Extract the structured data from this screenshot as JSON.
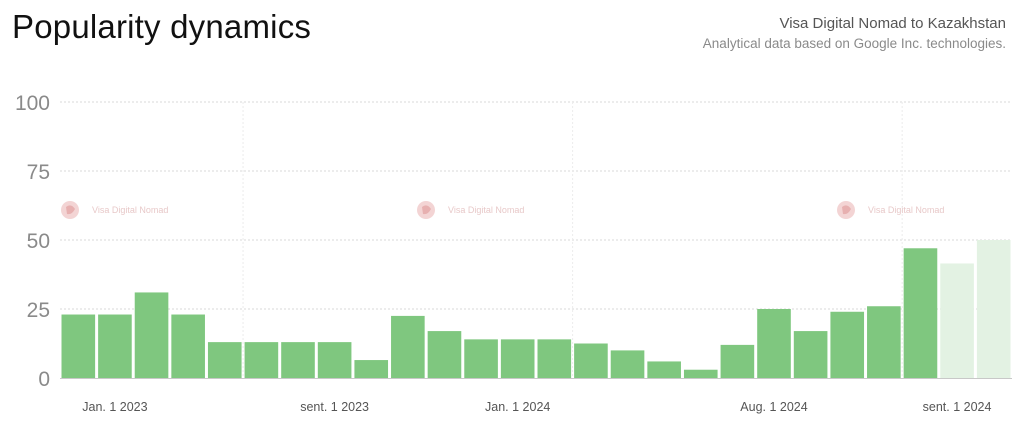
{
  "header": {
    "title": "Popularity dynamics",
    "subtitle": "Visa Digital Nomad to Kazakhstan",
    "source": "Analytical data based on Google Inc. technologies."
  },
  "watermark": {
    "text": "Visa Digital Nomad",
    "icon": "logo-icon"
  },
  "colors": {
    "bar": "#7fc77f",
    "bar_projected": "#e3f2e3",
    "grid": "#d8d8d8"
  },
  "chart_data": {
    "type": "bar",
    "title": "Popularity dynamics",
    "xlabel": "",
    "ylabel": "",
    "ylim": [
      0,
      100
    ],
    "yticks": [
      0,
      25,
      50,
      75,
      100
    ],
    "grid": true,
    "x_tick_labels": [
      {
        "label": "Jan. 1 2023",
        "index": 1
      },
      {
        "label": "sent. 1 2023",
        "index": 7
      },
      {
        "label": "Jan. 1 2024",
        "index": 12
      },
      {
        "label": "Aug. 1 2024",
        "index": 19
      },
      {
        "label": "sent. 1 2024",
        "index": 24
      }
    ],
    "values": [
      23,
      23,
      31,
      23,
      13,
      13,
      13,
      13,
      6.5,
      22.5,
      17,
      14,
      14,
      14,
      12.5,
      10,
      6,
      3,
      12,
      25,
      17,
      24,
      26,
      47,
      41.5,
      50
    ],
    "projected_from_index": 24
  }
}
